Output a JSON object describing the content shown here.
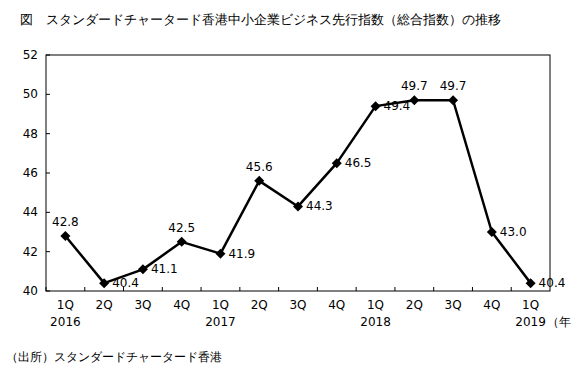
{
  "chart_data": {
    "type": "line",
    "title": "図　スタンダードチャータード香港中小企業ビジネス先行指数（総合指数）の推移",
    "source": "（出所）スタンダードチャータード香港",
    "x_label": "（年）",
    "categories": [
      "1Q 2016",
      "2Q",
      "3Q",
      "4Q",
      "1Q 2017",
      "2Q",
      "3Q",
      "4Q",
      "1Q 2018",
      "2Q",
      "3Q",
      "4Q",
      "1Q 2019"
    ],
    "values": [
      42.8,
      40.4,
      41.1,
      42.5,
      41.9,
      45.6,
      44.3,
      46.5,
      49.4,
      49.7,
      49.7,
      43.0,
      40.4
    ],
    "value_labels": [
      "42.8",
      "40.4",
      "41.1",
      "42.5",
      "41.9",
      "45.6",
      "44.3",
      "46.5",
      "49.4",
      "49.7",
      "49.7",
      "43.0",
      "40.4"
    ],
    "color": "#000000",
    "marker": "diamond",
    "line_style": "solid",
    "data_labels": true,
    "grid": false,
    "ylim": [
      40,
      52
    ],
    "yticks": [
      40,
      42,
      44,
      46,
      48,
      50,
      52
    ]
  }
}
